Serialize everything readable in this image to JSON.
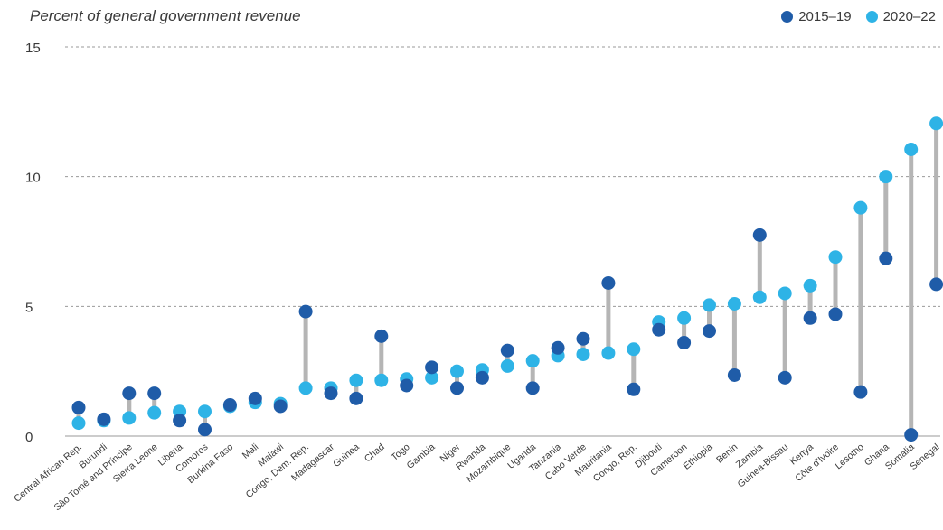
{
  "chart_data": {
    "type": "dumbbell",
    "title": "Percent of general government revenue",
    "ylim": [
      0,
      15
    ],
    "yticks": [
      0,
      5,
      10,
      15
    ],
    "grid": true,
    "legend_position": "top-right",
    "series": [
      {
        "name": "2015–19",
        "color": "#1f5ca8"
      },
      {
        "name": "2020–22",
        "color": "#2eb3e6"
      }
    ],
    "categories": [
      "Central African Rep.",
      "Burundi",
      "São Tomé and Príncipe",
      "Sierra Leone",
      "Liberia",
      "Comoros",
      "Burkina Faso",
      "Mali",
      "Malawi",
      "Congo, Dem. Rep.",
      "Madagascar",
      "Guinea",
      "Chad",
      "Togo",
      "Gambia",
      "Niger",
      "Rwanda",
      "Mozambique",
      "Uganda",
      "Tanzania",
      "Cabo Verde",
      "Mauritania",
      "Congo, Rep.",
      "Djibouti",
      "Cameroon",
      "Ethiopia",
      "Benin",
      "Zambia",
      "Guinea-Bissau",
      "Kenya",
      "Côte d'Ivoire",
      "Lesotho",
      "Ghana",
      "Somalia",
      "Senegal"
    ],
    "values_2015_19": [
      1.1,
      0.65,
      1.65,
      1.65,
      0.6,
      0.25,
      1.2,
      1.45,
      1.15,
      4.8,
      1.65,
      1.45,
      3.85,
      1.95,
      2.65,
      1.85,
      2.25,
      3.3,
      1.85,
      3.4,
      3.75,
      5.9,
      1.8,
      4.1,
      3.6,
      4.05,
      2.35,
      7.75,
      2.25,
      4.55,
      4.7,
      1.7,
      6.85,
      0.05,
      5.85
    ],
    "values_2020_22": [
      0.5,
      0.6,
      0.7,
      0.9,
      0.95,
      0.95,
      1.15,
      1.3,
      1.25,
      1.85,
      1.85,
      2.15,
      2.15,
      2.2,
      2.25,
      2.5,
      2.55,
      2.7,
      2.9,
      3.1,
      3.15,
      3.2,
      3.35,
      4.4,
      4.55,
      5.05,
      5.1,
      5.35,
      5.5,
      5.8,
      6.9,
      8.8,
      10.0,
      11.05,
      12.05
    ]
  }
}
